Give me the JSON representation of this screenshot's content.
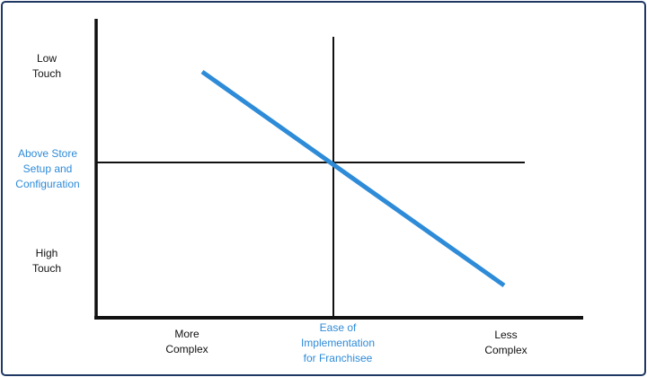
{
  "colors": {
    "frame_border": "#1f3864",
    "axis": "#111111",
    "trend_line": "#2e8bd8",
    "accent_text": "#2e8bd8"
  },
  "y_axis": {
    "top_label": "Low\nTouch",
    "middle_label": "Above Store\nSetup and\nConfiguration",
    "bottom_label": "High\nTouch"
  },
  "x_axis": {
    "left_label": "More\nComplex",
    "middle_label": "Ease of\nImplementation\nfor Franchisee",
    "right_label": "Less\nComplex"
  },
  "trend": {
    "direction": "descending",
    "from": "top-left",
    "to": "bottom-right"
  }
}
